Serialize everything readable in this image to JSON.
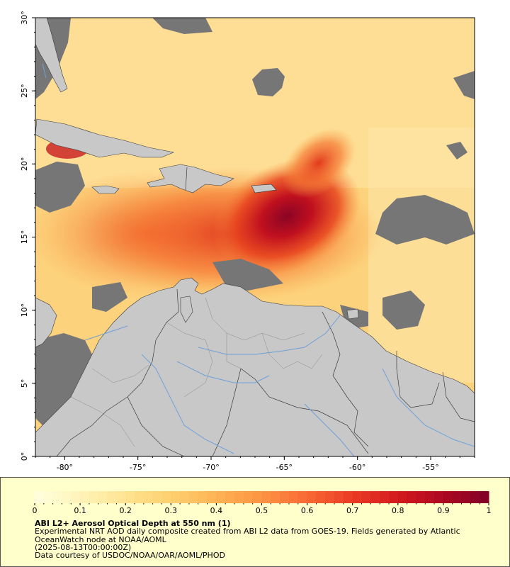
{
  "map": {
    "region": "Caribbean Sea / northern South America",
    "lon_range": [
      -82,
      -52
    ],
    "lat_range": [
      0,
      30
    ],
    "x_ticks": [
      "-80°",
      "-75°",
      "-70°",
      "-65°",
      "-60°",
      "-55°"
    ],
    "x_tick_values": [
      -80,
      -75,
      -70,
      -65,
      -60,
      -55
    ],
    "y_ticks": [
      "0°",
      "5°",
      "10°",
      "15°",
      "20°",
      "25°",
      "30°"
    ],
    "y_tick_values": [
      0,
      5,
      10,
      15,
      20,
      25,
      30
    ],
    "colors": {
      "land": "#c8c8c8",
      "missing_data": "#767676",
      "rivers": "#6ea0d8",
      "borders": "#3a3a3a",
      "frame": "#000000"
    },
    "dust_plume_max_aod": 1.0
  },
  "colorbar": {
    "min": 0,
    "max": 1,
    "labels": [
      "0",
      "0.1",
      "0.2",
      "0.3",
      "0.4",
      "0.5",
      "0.6",
      "0.7",
      "0.8",
      "0.9",
      "1"
    ],
    "label_values": [
      0,
      0.1,
      0.2,
      0.3,
      0.4,
      0.5,
      0.6,
      0.7,
      0.8,
      0.9,
      1
    ],
    "colors": [
      "#ffffe0",
      "#fff4b8",
      "#ffe391",
      "#fed06f",
      "#feb355",
      "#fd9343",
      "#f86a35",
      "#ea3b25",
      "#d31a1e",
      "#ae0722",
      "#800026"
    ]
  },
  "caption": {
    "title": "ABI L2+ Aerosol Optical Depth at 550 nm (1)",
    "description": "Experimental NRT AOD daily composite created from ABI L2 data from GOES-19. Fields generated by Atlantic OceanWatch node at NOAA/AOML",
    "date": "(2025-08-13T00:00:00Z)",
    "credit": "Data courtesy of USDOC/NOAA/OAR/AOML/PHOD"
  }
}
